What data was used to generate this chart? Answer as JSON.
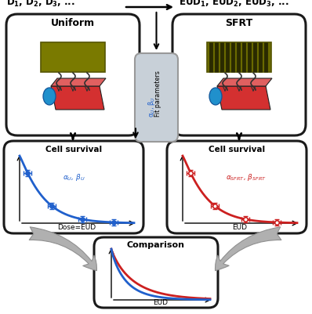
{
  "title_left": "D$_1$, D$_2$, D$_3$, ...",
  "title_right": "EUD$_1$, EUD$_2$, EUD$_3$, ...",
  "box_left_label": "Uniform",
  "box_right_label": "SFRT",
  "alpha_beta_left": "α$_U$, β$_U$",
  "alpha_beta_right": "α$_{SFRT}$, β$_{SFRT}$",
  "dose_label_left": "Dose=EUD",
  "eud_label_right": "EUD",
  "eud_label_bottom": "EUD",
  "comparison_label": "Comparison",
  "fit_params_line1": "Fit parameters",
  "fit_params_line2": "α$_U$, β$_U$",
  "bg_color": "#ffffff",
  "box_edge_color": "#1a1a1a",
  "blue_color": "#2060cc",
  "red_color": "#cc2020",
  "olive_color": "#7a7a00",
  "gray_arrow": "#aaaaaa",
  "fit_box_color": "#c8d0d8"
}
